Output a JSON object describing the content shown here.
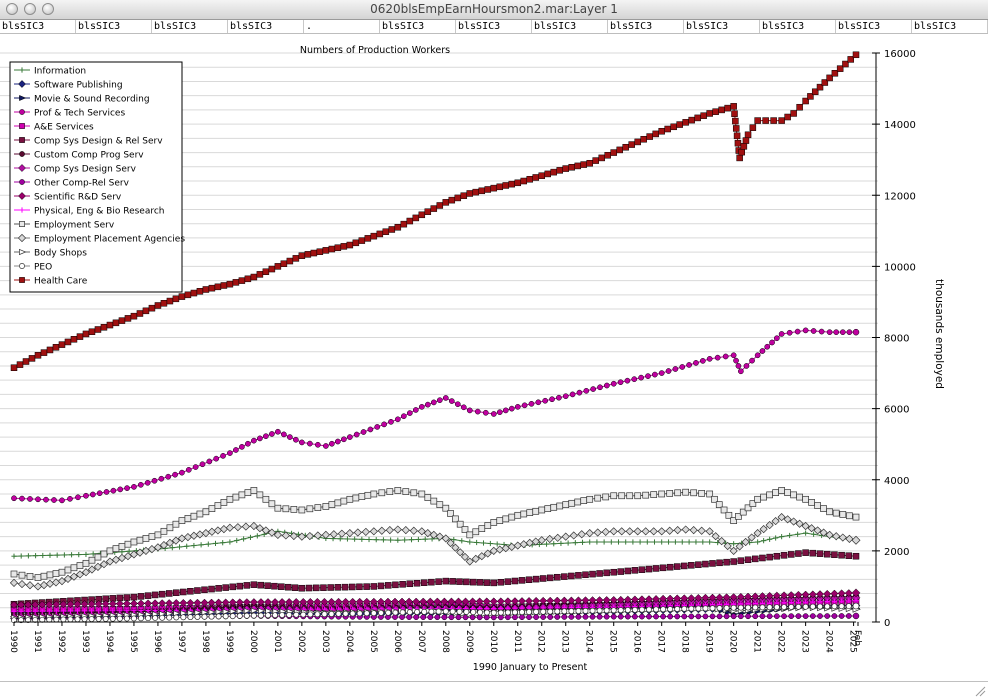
{
  "window": {
    "title": "0620blsEmpEarnHoursmon2.mar:Layer 1"
  },
  "header_cells": [
    "blsSIC3",
    "blsSIC3",
    "blsSIC3",
    "blsSIC3",
    ".",
    "blsSIC3",
    "blsSIC3",
    "blsSIC3",
    "blsSIC3",
    "blsSIC3",
    "blsSIC3",
    "blsSIC3",
    "blsSIC3"
  ],
  "chart_data": {
    "type": "line",
    "title": "Numbers of Production Workers",
    "xlabel": "1990 January to Present",
    "ylabel": "thousands employed",
    "ylim": [
      0,
      16000
    ],
    "yticks": [
      0,
      2000,
      4000,
      6000,
      8000,
      10000,
      12000,
      14000,
      16000
    ],
    "ytick_labels": [
      "0",
      "2000",
      "4000",
      "6000",
      "8000",
      "10000",
      "12000",
      "14000",
      "16000"
    ],
    "x_tick_labels": [
      "1990",
      "1991",
      "1992",
      "1993",
      "1994",
      "1995",
      "1996",
      "1997",
      "1998",
      "1999",
      "2000",
      "2001",
      "2002",
      "2003",
      "2004",
      "2005",
      "2006",
      "2007",
      "2008",
      "2009",
      "2010",
      "2011",
      "2012",
      "2013",
      "2014",
      "2015",
      "2016",
      "2017",
      "2018",
      "2019",
      "2020",
      "2021",
      "2022",
      "2023",
      "2024",
      "2025",
      "Feb"
    ],
    "x_tick_labels_shown": [
      "1990",
      "1991",
      "1992",
      "1993",
      "1994",
      "1995",
      "1996",
      "1997",
      "1998",
      "1999",
      "2000",
      "2001",
      "2002",
      "2003",
      "2004",
      "2005",
      "2006",
      "2007",
      "2008",
      "2009",
      "2010",
      "2011",
      "2012",
      "2013",
      "2014",
      "2015",
      "2016",
      "2017",
      "2018",
      "2019",
      "2020",
      "2021",
      "2022",
      "2023",
      "2024",
      "2025",
      "Feb"
    ],
    "xlim": [
      1990,
      2025.1
    ],
    "grid": true,
    "legend_position": "top-left",
    "series": [
      {
        "name": "Information",
        "color": "#3a7a3a",
        "marker": "plus",
        "points": [
          [
            1990,
            1850
          ],
          [
            1993,
            1900
          ],
          [
            1996,
            2050
          ],
          [
            1999,
            2250
          ],
          [
            2001,
            2550
          ],
          [
            2003,
            2350
          ],
          [
            2006,
            2300
          ],
          [
            2008,
            2350
          ],
          [
            2009,
            2250
          ],
          [
            2011,
            2150
          ],
          [
            2014,
            2250
          ],
          [
            2017,
            2250
          ],
          [
            2019,
            2250
          ],
          [
            2020,
            2200
          ],
          [
            2021,
            2250
          ],
          [
            2022,
            2400
          ],
          [
            2023,
            2500
          ],
          [
            2024,
            2400
          ],
          [
            2025.1,
            2300
          ]
        ]
      },
      {
        "name": "Software Publishing",
        "color": "#1a237e",
        "marker": "diamond",
        "points": [
          [
            1990,
            100
          ],
          [
            1995,
            160
          ],
          [
            2000,
            260
          ],
          [
            2003,
            230
          ],
          [
            2008,
            260
          ],
          [
            2010,
            250
          ],
          [
            2015,
            300
          ],
          [
            2020,
            380
          ],
          [
            2023,
            450
          ],
          [
            2025.1,
            460
          ]
        ]
      },
      {
        "name": "Movie & Sound Recording",
        "color": "#101860",
        "marker": "triangle",
        "points": [
          [
            1990,
            250
          ],
          [
            1995,
            300
          ],
          [
            2000,
            380
          ],
          [
            2005,
            370
          ],
          [
            2010,
            360
          ],
          [
            2015,
            400
          ],
          [
            2019,
            430
          ],
          [
            2020,
            220
          ],
          [
            2021,
            300
          ],
          [
            2023,
            420
          ],
          [
            2025.1,
            380
          ]
        ]
      },
      {
        "name": "Prof & Tech Services",
        "color": "#c000a0",
        "marker": "circle",
        "points": [
          [
            1990,
            3480
          ],
          [
            1991,
            3450
          ],
          [
            1992,
            3420
          ],
          [
            1993,
            3550
          ],
          [
            1995,
            3800
          ],
          [
            1997,
            4200
          ],
          [
            1999,
            4750
          ],
          [
            2000,
            5100
          ],
          [
            2001,
            5350
          ],
          [
            2002,
            5050
          ],
          [
            2003,
            4950
          ],
          [
            2004,
            5200
          ],
          [
            2006,
            5700
          ],
          [
            2007,
            6050
          ],
          [
            2008,
            6300
          ],
          [
            2009,
            5950
          ],
          [
            2010,
            5850
          ],
          [
            2011,
            6050
          ],
          [
            2013,
            6350
          ],
          [
            2015,
            6700
          ],
          [
            2017,
            7000
          ],
          [
            2019,
            7400
          ],
          [
            2020,
            7500
          ],
          [
            2020.3,
            7050
          ],
          [
            2021,
            7500
          ],
          [
            2022,
            8100
          ],
          [
            2023,
            8200
          ],
          [
            2024,
            8150
          ],
          [
            2025.1,
            8150
          ]
        ]
      },
      {
        "name": "A&E Services",
        "color": "#d000b0",
        "marker": "square",
        "points": [
          [
            1990,
            350
          ],
          [
            1995,
            360
          ],
          [
            2000,
            420
          ],
          [
            2005,
            440
          ],
          [
            2008,
            480
          ],
          [
            2010,
            420
          ],
          [
            2015,
            470
          ],
          [
            2020,
            520
          ],
          [
            2025.1,
            570
          ]
        ]
      },
      {
        "name": "Comp Sys Design & Rel Serv",
        "color": "#7a1040",
        "marker": "square",
        "points": [
          [
            1990,
            500
          ],
          [
            1995,
            700
          ],
          [
            2000,
            1050
          ],
          [
            2002,
            950
          ],
          [
            2005,
            1000
          ],
          [
            2008,
            1150
          ],
          [
            2010,
            1100
          ],
          [
            2015,
            1400
          ],
          [
            2020,
            1700
          ],
          [
            2023,
            1950
          ],
          [
            2025.1,
            1850
          ]
        ]
      },
      {
        "name": "Custom Comp Prog Serv",
        "color": "#5a0a30",
        "marker": "circle",
        "points": [
          [
            1990,
            200
          ],
          [
            1995,
            280
          ],
          [
            2000,
            450
          ],
          [
            2003,
            380
          ],
          [
            2008,
            420
          ],
          [
            2010,
            400
          ],
          [
            2015,
            550
          ],
          [
            2020,
            650
          ],
          [
            2025.1,
            720
          ]
        ]
      },
      {
        "name": "Comp Sys Design Serv",
        "color": "#b010a0",
        "marker": "diamond",
        "points": [
          [
            1990,
            150
          ],
          [
            1995,
            220
          ],
          [
            2000,
            380
          ],
          [
            2003,
            330
          ],
          [
            2008,
            380
          ],
          [
            2010,
            370
          ],
          [
            2015,
            500
          ],
          [
            2020,
            620
          ],
          [
            2025.1,
            680
          ]
        ]
      },
      {
        "name": "Other Comp-Rel Serv",
        "color": "#a000a0",
        "marker": "circle",
        "points": [
          [
            1990,
            80
          ],
          [
            1995,
            110
          ],
          [
            2000,
            170
          ],
          [
            2005,
            140
          ],
          [
            2010,
            130
          ],
          [
            2015,
            150
          ],
          [
            2020,
            160
          ],
          [
            2025.1,
            170
          ]
        ]
      },
      {
        "name": "Scientific R&D Serv",
        "color": "#9a006a",
        "marker": "diamond",
        "points": [
          [
            1990,
            480
          ],
          [
            1995,
            520
          ],
          [
            2000,
            560
          ],
          [
            2005,
            570
          ],
          [
            2010,
            580
          ],
          [
            2015,
            620
          ],
          [
            2020,
            700
          ],
          [
            2025.1,
            820
          ]
        ]
      },
      {
        "name": "Physical, Eng & Bio Research",
        "color": "#ff00ff",
        "marker": "plus",
        "points": [
          [
            1990,
            300
          ],
          [
            1995,
            320
          ],
          [
            2000,
            350
          ],
          [
            2005,
            370
          ],
          [
            2010,
            380
          ],
          [
            2015,
            420
          ],
          [
            2020,
            500
          ],
          [
            2025.1,
            600
          ]
        ]
      },
      {
        "name": "Employment Serv",
        "color": "#555555",
        "marker": "hsquare",
        "points": [
          [
            1990,
            1350
          ],
          [
            1991,
            1250
          ],
          [
            1992,
            1400
          ],
          [
            1993,
            1650
          ],
          [
            1994,
            2000
          ],
          [
            1995,
            2250
          ],
          [
            1996,
            2450
          ],
          [
            1997,
            2850
          ],
          [
            1998,
            3100
          ],
          [
            1999,
            3450
          ],
          [
            2000,
            3700
          ],
          [
            2001,
            3200
          ],
          [
            2002,
            3150
          ],
          [
            2003,
            3250
          ],
          [
            2004,
            3450
          ],
          [
            2005,
            3600
          ],
          [
            2006,
            3700
          ],
          [
            2007,
            3600
          ],
          [
            2008,
            3200
          ],
          [
            2009,
            2450
          ],
          [
            2010,
            2800
          ],
          [
            2011,
            3000
          ],
          [
            2012,
            3150
          ],
          [
            2013,
            3300
          ],
          [
            2014,
            3450
          ],
          [
            2015,
            3550
          ],
          [
            2016,
            3550
          ],
          [
            2017,
            3600
          ],
          [
            2018,
            3650
          ],
          [
            2019,
            3600
          ],
          [
            2020,
            2850
          ],
          [
            2021,
            3450
          ],
          [
            2022,
            3700
          ],
          [
            2023,
            3450
          ],
          [
            2024,
            3100
          ],
          [
            2025.1,
            2950
          ]
        ]
      },
      {
        "name": "Employment Placement Agencies",
        "color": "#777777",
        "marker": "hdiamond",
        "points": [
          [
            1990,
            1100
          ],
          [
            1991,
            1000
          ],
          [
            1992,
            1150
          ],
          [
            1993,
            1400
          ],
          [
            1994,
            1700
          ],
          [
            1995,
            1900
          ],
          [
            1996,
            2100
          ],
          [
            1997,
            2350
          ],
          [
            1998,
            2500
          ],
          [
            1999,
            2650
          ],
          [
            2000,
            2700
          ],
          [
            2001,
            2450
          ],
          [
            2002,
            2400
          ],
          [
            2003,
            2450
          ],
          [
            2004,
            2500
          ],
          [
            2005,
            2550
          ],
          [
            2006,
            2600
          ],
          [
            2007,
            2550
          ],
          [
            2008,
            2350
          ],
          [
            2009,
            1700
          ],
          [
            2010,
            2000
          ],
          [
            2011,
            2150
          ],
          [
            2012,
            2300
          ],
          [
            2013,
            2400
          ],
          [
            2014,
            2500
          ],
          [
            2015,
            2550
          ],
          [
            2016,
            2550
          ],
          [
            2017,
            2550
          ],
          [
            2018,
            2600
          ],
          [
            2019,
            2550
          ],
          [
            2020,
            2000
          ],
          [
            2021,
            2500
          ],
          [
            2022,
            2950
          ],
          [
            2023,
            2700
          ],
          [
            2024,
            2450
          ],
          [
            2025.1,
            2300
          ]
        ]
      },
      {
        "name": "Body Shops",
        "color": "#666666",
        "marker": "htriangle",
        "points": [
          [
            1990,
            120
          ],
          [
            1995,
            200
          ],
          [
            2000,
            320
          ],
          [
            2003,
            260
          ],
          [
            2007,
            330
          ],
          [
            2009,
            220
          ],
          [
            2012,
            280
          ],
          [
            2016,
            330
          ],
          [
            2019,
            380
          ],
          [
            2020,
            310
          ],
          [
            2023,
            400
          ],
          [
            2025.1,
            360
          ]
        ]
      },
      {
        "name": "PEO",
        "color": "#888888",
        "marker": "hcircle",
        "points": [
          [
            1990,
            50
          ],
          [
            1995,
            100
          ],
          [
            2000,
            180
          ],
          [
            2005,
            250
          ],
          [
            2008,
            300
          ],
          [
            2010,
            260
          ],
          [
            2015,
            330
          ],
          [
            2020,
            400
          ],
          [
            2025.1,
            450
          ]
        ]
      },
      {
        "name": "Health Care",
        "color": "#a01010",
        "marker": "square",
        "points": [
          [
            1990,
            7150
          ],
          [
            1991,
            7500
          ],
          [
            1992,
            7800
          ],
          [
            1993,
            8100
          ],
          [
            1994,
            8350
          ],
          [
            1995,
            8600
          ],
          [
            1996,
            8900
          ],
          [
            1997,
            9150
          ],
          [
            1998,
            9350
          ],
          [
            1999,
            9500
          ],
          [
            2000,
            9700
          ],
          [
            2001,
            10000
          ],
          [
            2002,
            10300
          ],
          [
            2003,
            10450
          ],
          [
            2004,
            10600
          ],
          [
            2005,
            10850
          ],
          [
            2006,
            11100
          ],
          [
            2007,
            11450
          ],
          [
            2008,
            11800
          ],
          [
            2009,
            12050
          ],
          [
            2010,
            12200
          ],
          [
            2011,
            12350
          ],
          [
            2012,
            12550
          ],
          [
            2013,
            12750
          ],
          [
            2014,
            12900
          ],
          [
            2015,
            13200
          ],
          [
            2016,
            13500
          ],
          [
            2017,
            13800
          ],
          [
            2018,
            14050
          ],
          [
            2019,
            14300
          ],
          [
            2020,
            14500
          ],
          [
            2020.25,
            13050
          ],
          [
            2020.6,
            13700
          ],
          [
            2021,
            14100
          ],
          [
            2022,
            14100
          ],
          [
            2022.5,
            14300
          ],
          [
            2023,
            14650
          ],
          [
            2024,
            15300
          ],
          [
            2025.1,
            15950
          ]
        ]
      }
    ]
  }
}
